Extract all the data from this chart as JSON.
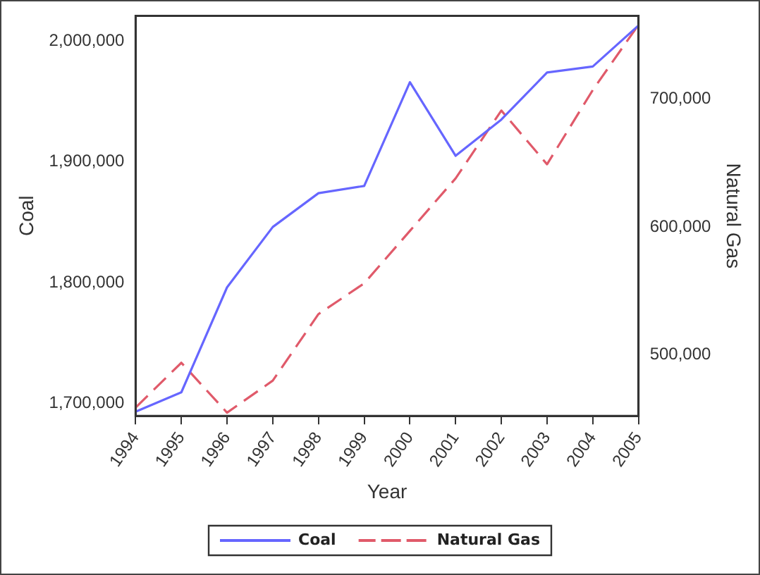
{
  "chart_data": {
    "type": "line",
    "xlabel": "Year",
    "ylabel": "Coal",
    "y2label": "Natural Gas",
    "categories": [
      "1994",
      "1995",
      "1996",
      "1997",
      "1998",
      "1999",
      "2000",
      "2001",
      "2002",
      "2003",
      "2004",
      "2005"
    ],
    "series": [
      {
        "name": "Coal",
        "color": "#6666ff",
        "line_style": "solid",
        "values": [
          1693000,
          1709000,
          1796000,
          1846000,
          1874000,
          1880000,
          1966000,
          1905000,
          1935000,
          1974000,
          1979000,
          2013000
        ]
      },
      {
        "name": "Natural Gas",
        "color": "#e05a6a",
        "line_style": "dashed",
        "axis": "y2",
        "values": [
          459000,
          494000,
          455000,
          480000,
          532000,
          556000,
          597000,
          638000,
          691000,
          649000,
          707000,
          758000
        ]
      }
    ],
    "ylim": [
      1689500,
      2021000
    ],
    "yticks": [
      {
        "value": 1700000,
        "label": "1,700,000"
      },
      {
        "value": 1800000,
        "label": "1,800,000"
      },
      {
        "value": 1900000,
        "label": "1,900,000"
      },
      {
        "value": 2000000,
        "label": "2,000,000"
      }
    ],
    "y2lim": [
      452500,
      765000
    ],
    "y2ticks": [
      {
        "value": 500000,
        "label": "500,000"
      },
      {
        "value": 600000,
        "label": "600,000"
      },
      {
        "value": 700000,
        "label": "700,000"
      }
    ],
    "grid": false,
    "legend": "bottom",
    "marker": "none"
  }
}
